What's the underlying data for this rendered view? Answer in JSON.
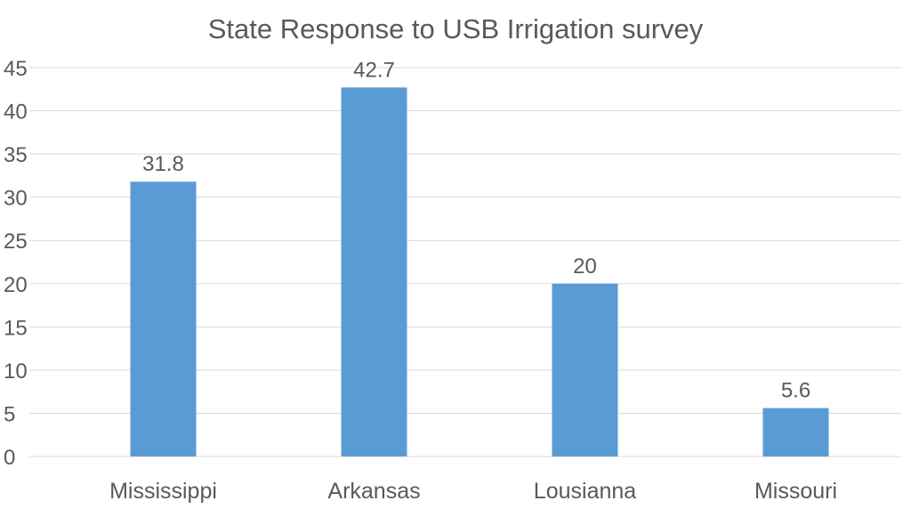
{
  "chart_data": {
    "type": "bar",
    "title": "State Response to USB Irrigation survey",
    "categories": [
      "Mississippi",
      "Arkansas",
      "Lousianna",
      "Missouri"
    ],
    "values": [
      31.8,
      42.7,
      20,
      5.6
    ],
    "data_labels": [
      "31.8",
      "42.7",
      "20",
      "5.6"
    ],
    "xlabel": "",
    "ylabel": "",
    "ylim": [
      0,
      45
    ],
    "yticks": [
      "0",
      "5",
      "10",
      "15",
      "20",
      "25",
      "30",
      "35",
      "40",
      "45"
    ],
    "grid": true,
    "legend": "none",
    "colors": {
      "bar": "#5B9BD5",
      "grid": "#D9D9D9",
      "text": "#595959"
    }
  }
}
